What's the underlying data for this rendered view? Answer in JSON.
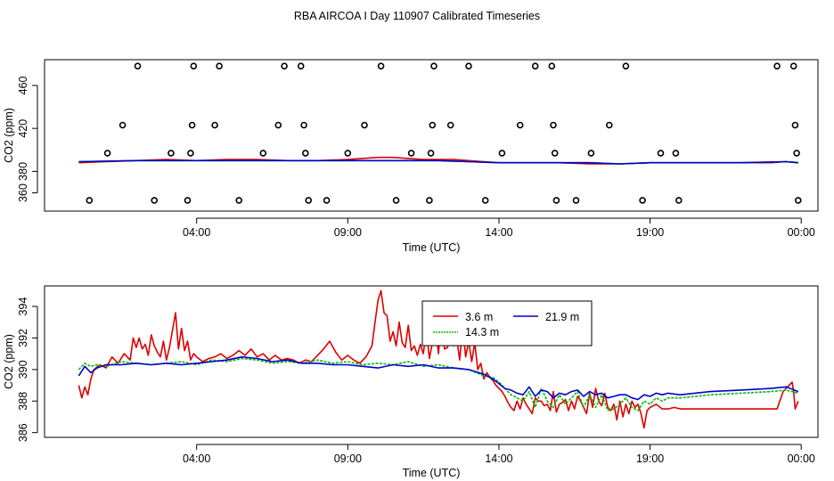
{
  "title": "RBA AIRCOA I  Day 110907  Calibrated Timeseries",
  "colors": {
    "s1": "#dd0000",
    "s2": "#00bb00",
    "s3": "#0000cc",
    "axis": "#000000"
  },
  "chart_data": [
    {
      "type": "line+scatter",
      "xlabel": "Time (UTC)",
      "ylabel": "CO2 (ppm)",
      "xlim": [
        0.0,
        24.2
      ],
      "ylim": [
        343,
        484
      ],
      "xticks": [
        {
          "v": 4,
          "label": "04:00"
        },
        {
          "v": 9,
          "label": "09:00"
        },
        {
          "v": 14,
          "label": "14:00"
        },
        {
          "v": 19,
          "label": "19:00"
        },
        {
          "v": 24,
          "label": "00:00"
        }
      ],
      "yticks": [
        {
          "v": 360,
          "label": "360"
        },
        {
          "v": 380,
          "label": "380"
        },
        {
          "v": 420,
          "label": "420"
        },
        {
          "v": 460,
          "label": "460"
        }
      ],
      "cal_points": [
        [
          0.45,
          353
        ],
        [
          1.05,
          397
        ],
        [
          1.55,
          423
        ],
        [
          2.05,
          478
        ],
        [
          2.6,
          353
        ],
        [
          3.15,
          397
        ],
        [
          3.7,
          353
        ],
        [
          3.8,
          397
        ],
        [
          3.85,
          423
        ],
        [
          3.9,
          478
        ],
        [
          4.6,
          423
        ],
        [
          4.75,
          478
        ],
        [
          5.4,
          353
        ],
        [
          6.2,
          397
        ],
        [
          6.7,
          423
        ],
        [
          6.9,
          478
        ],
        [
          7.45,
          478
        ],
        [
          7.55,
          423
        ],
        [
          7.6,
          397
        ],
        [
          7.7,
          353
        ],
        [
          8.3,
          353
        ],
        [
          9.0,
          397
        ],
        [
          9.55,
          423
        ],
        [
          10.1,
          478
        ],
        [
          10.6,
          353
        ],
        [
          11.1,
          397
        ],
        [
          11.7,
          353
        ],
        [
          11.75,
          397
        ],
        [
          11.8,
          423
        ],
        [
          11.85,
          478
        ],
        [
          12.4,
          423
        ],
        [
          13.0,
          478
        ],
        [
          13.55,
          353
        ],
        [
          14.1,
          397
        ],
        [
          14.7,
          423
        ],
        [
          15.2,
          478
        ],
        [
          15.75,
          478
        ],
        [
          15.8,
          423
        ],
        [
          15.85,
          397
        ],
        [
          15.9,
          353
        ],
        [
          16.55,
          353
        ],
        [
          17.05,
          397
        ],
        [
          17.65,
          423
        ],
        [
          18.2,
          478
        ],
        [
          18.75,
          353
        ],
        [
          19.35,
          397
        ],
        [
          19.85,
          397
        ],
        [
          19.95,
          353
        ],
        [
          23.2,
          478
        ],
        [
          23.75,
          478
        ],
        [
          23.8,
          423
        ],
        [
          23.85,
          397
        ],
        [
          23.9,
          353
        ]
      ],
      "series": [
        {
          "name": "3.6 m",
          "color": "#dd0000",
          "x": [
            0.1,
            1,
            2,
            3,
            4,
            5,
            6,
            7,
            8,
            9,
            10,
            10.5,
            11,
            11.5,
            12,
            12.5,
            13,
            13.5,
            14,
            15,
            16,
            17,
            18,
            19,
            20,
            21,
            22,
            23,
            23.5,
            23.9
          ],
          "values": [
            388,
            389,
            390,
            391,
            390,
            391,
            391,
            390,
            390,
            391,
            393,
            393,
            392,
            391,
            391,
            391,
            390,
            389,
            388,
            388,
            388,
            387,
            387,
            388,
            388,
            388,
            388,
            388,
            389,
            388
          ]
        },
        {
          "name": "14.3 m",
          "color": "#00bb00",
          "x": [
            0.1,
            2,
            4,
            6,
            8,
            10,
            12,
            13,
            14,
            15,
            16,
            17,
            18,
            19,
            20,
            22,
            23.5,
            23.9
          ],
          "values": [
            389,
            390,
            390,
            390,
            390,
            390,
            390,
            389,
            388,
            388,
            388,
            388,
            387,
            388,
            388,
            388,
            389,
            388
          ]
        },
        {
          "name": "21.9 m",
          "color": "#0000cc",
          "x": [
            0.1,
            2,
            4,
            6,
            8,
            10,
            12,
            13,
            14,
            15,
            16,
            17,
            18,
            19,
            20,
            22,
            23.5,
            23.9
          ],
          "values": [
            389,
            390,
            390,
            390,
            390,
            390,
            390,
            389,
            388,
            388,
            388,
            388,
            387,
            388,
            388,
            388,
            389,
            388
          ]
        }
      ]
    },
    {
      "type": "line",
      "xlabel": "Time (UTC)",
      "ylabel": "CO2 (ppm)",
      "xlim": [
        0.0,
        24.2
      ],
      "ylim": [
        385.7,
        395.3
      ],
      "xticks": [
        {
          "v": 4,
          "label": "04:00"
        },
        {
          "v": 9,
          "label": "09:00"
        },
        {
          "v": 14,
          "label": "14:00"
        },
        {
          "v": 19,
          "label": "19:00"
        },
        {
          "v": 24,
          "label": "00:00"
        }
      ],
      "yticks": [
        {
          "v": 386,
          "label": "386"
        },
        {
          "v": 388,
          "label": "388"
        },
        {
          "v": 390,
          "label": "390"
        },
        {
          "v": 392,
          "label": "392"
        },
        {
          "v": 394,
          "label": "394"
        }
      ],
      "legend": {
        "position": "top-center",
        "entries": [
          "3.6 m",
          "21.9 m",
          "14.3 m"
        ]
      },
      "series": [
        {
          "name": "3.6 m",
          "color": "#dd0000",
          "x": [
            0.1,
            0.2,
            0.3,
            0.4,
            0.5,
            0.6,
            0.8,
            1.0,
            1.2,
            1.4,
            1.6,
            1.8,
            1.9,
            2.0,
            2.1,
            2.2,
            2.3,
            2.4,
            2.5,
            2.6,
            2.7,
            2.8,
            2.9,
            3.0,
            3.1,
            3.2,
            3.3,
            3.4,
            3.5,
            3.6,
            3.7,
            3.8,
            3.9,
            4.0,
            4.2,
            4.4,
            4.6,
            4.8,
            5.0,
            5.2,
            5.4,
            5.6,
            5.8,
            6.0,
            6.2,
            6.4,
            6.6,
            6.8,
            7.0,
            7.2,
            7.4,
            7.6,
            7.8,
            8.0,
            8.2,
            8.4,
            8.6,
            8.8,
            9.0,
            9.2,
            9.4,
            9.6,
            9.8,
            9.9,
            10.0,
            10.1,
            10.2,
            10.3,
            10.4,
            10.5,
            10.6,
            10.7,
            10.8,
            10.9,
            11.0,
            11.1,
            11.2,
            11.3,
            11.4,
            11.5,
            11.6,
            11.7,
            11.8,
            11.9,
            12.0,
            12.1,
            12.2,
            12.3,
            12.4,
            12.5,
            12.6,
            12.7,
            12.8,
            12.9,
            13.0,
            13.1,
            13.2,
            13.3,
            13.4,
            13.5,
            13.6,
            13.7,
            13.8,
            13.9,
            14.0,
            14.1,
            14.2,
            14.3,
            14.4,
            14.5,
            14.6,
            14.7,
            14.8,
            14.9,
            15.0,
            15.1,
            15.2,
            15.3,
            15.4,
            15.5,
            15.6,
            15.7,
            15.8,
            15.9,
            16.0,
            16.1,
            16.2,
            16.3,
            16.4,
            16.5,
            16.6,
            16.7,
            16.8,
            16.9,
            17.0,
            17.1,
            17.2,
            17.3,
            17.4,
            17.5,
            17.6,
            17.7,
            17.8,
            17.9,
            18.0,
            18.1,
            18.2,
            18.3,
            18.4,
            18.5,
            18.6,
            18.7,
            18.8,
            18.9,
            19.0,
            19.2,
            19.4,
            19.6,
            19.8,
            20.0,
            20.5,
            21.0,
            21.5,
            22.0,
            22.5,
            23.0,
            23.2,
            23.4,
            23.6,
            23.7,
            23.75,
            23.8,
            23.9
          ],
          "values": [
            389.0,
            388.2,
            388.9,
            388.4,
            389.4,
            390.0,
            390.3,
            390.1,
            390.8,
            390.4,
            391.0,
            390.6,
            392.0,
            391.4,
            392.0,
            391.3,
            391.6,
            390.9,
            392.2,
            391.5,
            391.1,
            390.8,
            391.8,
            390.6,
            391.4,
            392.5,
            393.6,
            391.3,
            392.6,
            391.2,
            391.8,
            390.6,
            391.0,
            390.8,
            390.5,
            390.7,
            390.8,
            391.0,
            390.7,
            390.9,
            391.2,
            390.9,
            391.3,
            390.8,
            391.0,
            390.6,
            390.9,
            390.6,
            390.7,
            390.6,
            390.4,
            390.6,
            390.5,
            390.9,
            391.3,
            391.8,
            391.1,
            390.6,
            390.9,
            390.6,
            390.4,
            390.8,
            391.5,
            393.0,
            394.4,
            395.0,
            393.6,
            393.4,
            391.8,
            392.4,
            391.5,
            393.0,
            391.7,
            391.4,
            392.8,
            391.2,
            391.5,
            390.9,
            391.6,
            391.0,
            392.5,
            390.7,
            391.7,
            392.8,
            391.0,
            393.2,
            391.3,
            391.4,
            392.5,
            391.5,
            392.0,
            390.6,
            392.8,
            390.8,
            391.8,
            390.5,
            391.7,
            390.0,
            390.4,
            389.4,
            389.8,
            389.5,
            389.3,
            389.0,
            388.8,
            388.6,
            388.3,
            387.9,
            387.6,
            387.4,
            388.0,
            387.5,
            388.2,
            387.8,
            387.5,
            387.2,
            388.2,
            388.0,
            388.0,
            387.7,
            387.8,
            387.4,
            388.6,
            387.3,
            387.8,
            387.9,
            388.1,
            387.4,
            388.0,
            387.5,
            388.3,
            388.0,
            387.6,
            387.2,
            388.5,
            387.6,
            388.8,
            388.0,
            387.7,
            388.5,
            387.6,
            387.4,
            387.8,
            386.8,
            388.0,
            387.0,
            387.8,
            387.2,
            388.0,
            387.6,
            387.8,
            387.2,
            386.3,
            387.4,
            387.6,
            387.8,
            387.5,
            387.5,
            387.6,
            387.5,
            387.5,
            387.5,
            387.5,
            387.5,
            387.5,
            387.5,
            387.5,
            388.6,
            389.0,
            389.2,
            388.6,
            387.5,
            388.0
          ]
        },
        {
          "name": "14.3 m",
          "color": "#00bb00",
          "x": [
            0.1,
            0.3,
            0.5,
            0.7,
            1.0,
            1.5,
            2.0,
            2.5,
            3.0,
            3.5,
            4.0,
            4.5,
            5.0,
            5.5,
            6.0,
            6.5,
            7.0,
            7.5,
            8.0,
            8.5,
            9.0,
            9.5,
            10.0,
            10.5,
            11.0,
            11.5,
            12.0,
            12.5,
            13.0,
            13.5,
            13.8,
            14.0,
            14.2,
            14.4,
            14.6,
            14.8,
            15.0,
            15.2,
            15.4,
            15.6,
            15.8,
            16.0,
            16.2,
            16.4,
            16.6,
            16.8,
            17.0,
            17.2,
            17.4,
            17.6,
            17.8,
            18.0,
            18.2,
            18.4,
            18.6,
            18.8,
            19.0,
            19.2,
            19.4,
            19.6,
            20.0,
            21.0,
            22.0,
            23.0,
            23.5,
            23.9
          ],
          "values": [
            390.0,
            390.4,
            390.2,
            390.3,
            390.2,
            390.5,
            390.4,
            390.3,
            390.4,
            390.5,
            390.3,
            390.6,
            390.5,
            390.7,
            390.6,
            390.4,
            390.5,
            390.4,
            390.6,
            390.4,
            390.5,
            390.3,
            390.4,
            390.3,
            390.5,
            390.2,
            390.3,
            390.1,
            390.0,
            389.6,
            389.5,
            389.2,
            388.8,
            388.4,
            388.2,
            388.0,
            388.6,
            387.6,
            388.8,
            388.0,
            387.6,
            388.4,
            387.8,
            388.2,
            388.6,
            387.6,
            388.4,
            387.6,
            388.4,
            387.4,
            387.5,
            387.8,
            388.2,
            387.6,
            387.4,
            388.0,
            387.8,
            388.2,
            388.0,
            388.2,
            388.2,
            388.4,
            388.5,
            388.6,
            388.7,
            388.5
          ]
        },
        {
          "name": "21.9 m",
          "color": "#0000cc",
          "x": [
            0.1,
            0.3,
            0.5,
            0.7,
            1.0,
            1.5,
            2.0,
            2.5,
            3.0,
            3.5,
            4.0,
            4.5,
            5.0,
            5.5,
            6.0,
            6.5,
            7.0,
            7.5,
            8.0,
            8.5,
            9.0,
            9.5,
            10.0,
            10.5,
            11.0,
            11.5,
            12.0,
            12.5,
            13.0,
            13.5,
            13.8,
            14.0,
            14.2,
            14.4,
            14.6,
            14.8,
            15.0,
            15.2,
            15.4,
            15.6,
            15.8,
            16.0,
            16.2,
            16.4,
            16.6,
            16.8,
            17.0,
            17.2,
            17.4,
            17.6,
            17.8,
            18.0,
            18.2,
            18.4,
            18.6,
            18.8,
            19.0,
            19.2,
            19.4,
            19.6,
            20.0,
            21.0,
            22.0,
            23.0,
            23.5,
            23.9
          ],
          "values": [
            389.6,
            390.2,
            389.8,
            390.1,
            390.3,
            390.3,
            390.4,
            390.3,
            390.4,
            390.3,
            390.4,
            390.5,
            390.6,
            390.8,
            390.7,
            390.5,
            390.6,
            390.4,
            390.4,
            390.3,
            390.3,
            390.2,
            390.1,
            390.3,
            390.2,
            390.3,
            390.1,
            390.1,
            390.0,
            389.7,
            389.4,
            389.1,
            388.8,
            388.7,
            388.5,
            388.4,
            388.9,
            388.3,
            388.7,
            388.6,
            388.2,
            388.5,
            388.4,
            388.6,
            388.7,
            388.3,
            388.6,
            388.4,
            388.5,
            388.2,
            388.3,
            388.4,
            388.4,
            388.2,
            388.1,
            388.4,
            388.3,
            388.5,
            388.4,
            388.5,
            388.4,
            388.6,
            388.7,
            388.8,
            388.9,
            388.6
          ]
        }
      ]
    }
  ]
}
